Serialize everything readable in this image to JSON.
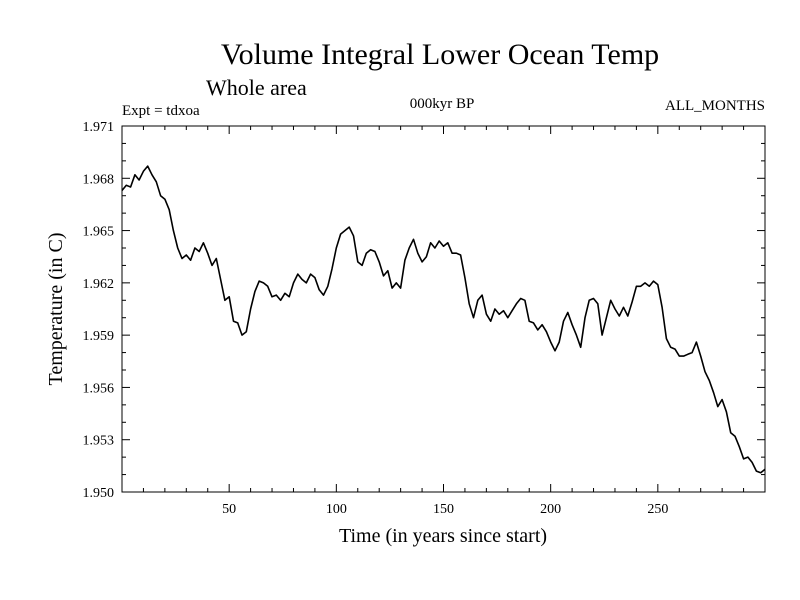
{
  "chart_data": {
    "type": "line",
    "title": "Volume Integral Lower Ocean Temp",
    "subtitle": "Whole area",
    "annotations": {
      "left": "Expt = tdxoa",
      "center": "000kyr BP",
      "right": "ALL_MONTHS"
    },
    "xlabel": "Time (in years since start)",
    "ylabel": "Temperature (in C)",
    "xlim": [
      0,
      300
    ],
    "ylim": [
      1.95,
      1.971
    ],
    "x_ticks": [
      50,
      100,
      150,
      200,
      250
    ],
    "y_ticks": [
      "1.950",
      "1.953",
      "1.956",
      "1.959",
      "1.962",
      "1.965",
      "1.968",
      "1.971"
    ],
    "grid": false,
    "line_color": "#000000",
    "series": [
      {
        "x": [
          0,
          2,
          4,
          6,
          8,
          10,
          12,
          14,
          16,
          18,
          20,
          22,
          24,
          26,
          28,
          30,
          32,
          34,
          36,
          38,
          40,
          42,
          44,
          46,
          48,
          50,
          52,
          54,
          56,
          58,
          60,
          62,
          64,
          66,
          68,
          70,
          72,
          74,
          76,
          78,
          80,
          82,
          84,
          86,
          88,
          90,
          92,
          94,
          96,
          98,
          100,
          102,
          104,
          106,
          108,
          110,
          112,
          114,
          116,
          118,
          120,
          122,
          124,
          126,
          128,
          130,
          132,
          134,
          136,
          138,
          140,
          142,
          144,
          146,
          148,
          150,
          152,
          154,
          156,
          158,
          160,
          162,
          164,
          166,
          168,
          170,
          172,
          174,
          176,
          178,
          180,
          182,
          184,
          186,
          188,
          190,
          192,
          194,
          196,
          198,
          200,
          202,
          204,
          206,
          208,
          210,
          212,
          214,
          216,
          218,
          220,
          222,
          224,
          226,
          228,
          230,
          232,
          234,
          236,
          238,
          240,
          242,
          244,
          246,
          248,
          250,
          252,
          254,
          256,
          258,
          260,
          262,
          264,
          266,
          268,
          270,
          272,
          274,
          276,
          278,
          280,
          282,
          284,
          286,
          288,
          290,
          292,
          294,
          296,
          298,
          300
        ],
        "values": [
          1.9673,
          1.9676,
          1.9675,
          1.9682,
          1.9679,
          1.9684,
          1.9687,
          1.9682,
          1.9678,
          1.967,
          1.9668,
          1.9662,
          1.965,
          1.964,
          1.9634,
          1.9636,
          1.9633,
          1.964,
          1.9638,
          1.9643,
          1.9637,
          1.963,
          1.9634,
          1.9622,
          1.961,
          1.9612,
          1.9598,
          1.9597,
          1.959,
          1.9592,
          1.9605,
          1.9615,
          1.9621,
          1.962,
          1.9618,
          1.9612,
          1.9613,
          1.961,
          1.9614,
          1.9612,
          1.962,
          1.9625,
          1.9622,
          1.962,
          1.9625,
          1.9623,
          1.9616,
          1.9613,
          1.9618,
          1.9628,
          1.964,
          1.9648,
          1.965,
          1.9652,
          1.9647,
          1.9632,
          1.963,
          1.9637,
          1.9639,
          1.9638,
          1.9632,
          1.9624,
          1.9627,
          1.9617,
          1.962,
          1.9617,
          1.9633,
          1.964,
          1.9645,
          1.9637,
          1.9632,
          1.9635,
          1.9643,
          1.964,
          1.9644,
          1.9641,
          1.9643,
          1.9637,
          1.9637,
          1.9636,
          1.9623,
          1.9608,
          1.96,
          1.961,
          1.9613,
          1.9602,
          1.9598,
          1.9605,
          1.9602,
          1.9604,
          1.96,
          1.9604,
          1.9608,
          1.9611,
          1.961,
          1.9598,
          1.9597,
          1.9593,
          1.9596,
          1.9592,
          1.9586,
          1.9581,
          1.9586,
          1.9598,
          1.9603,
          1.9596,
          1.959,
          1.9583,
          1.96,
          1.961,
          1.9611,
          1.9608,
          1.959,
          1.96,
          1.961,
          1.9605,
          1.9601,
          1.9606,
          1.9601,
          1.9609,
          1.9618,
          1.9618,
          1.962,
          1.9618,
          1.9621,
          1.9619,
          1.9606,
          1.9588,
          1.9583,
          1.9582,
          1.9578,
          1.9578,
          1.9579,
          1.958,
          1.9586,
          1.9578,
          1.9569,
          1.9564,
          1.9557,
          1.9549,
          1.9553,
          1.9546,
          1.9534,
          1.9532,
          1.9526,
          1.9519,
          1.952,
          1.9517,
          1.9512,
          1.9511,
          1.9513
        ]
      }
    ]
  }
}
